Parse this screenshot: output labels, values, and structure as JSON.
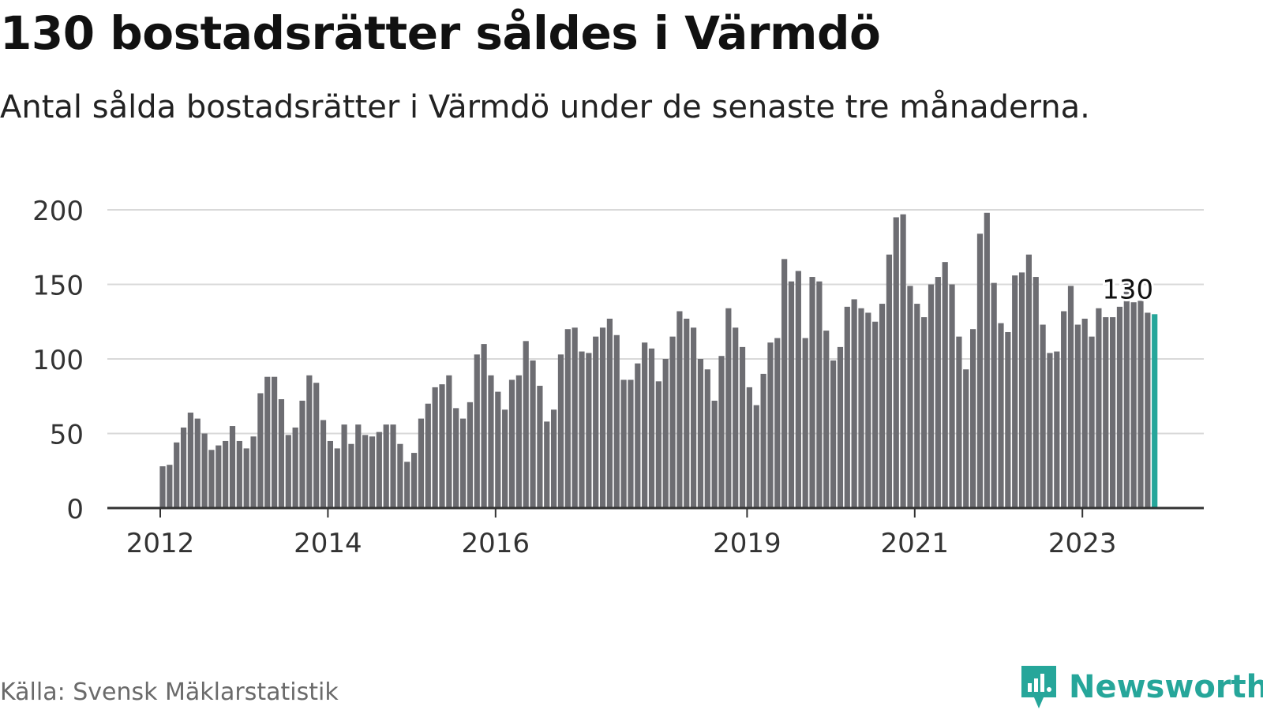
{
  "header": {
    "title": "130 bostadsrätter såldes i Värmdö",
    "subtitle": "Antal sålda bostadsrätter i Värmdö under de senaste tre månaderna."
  },
  "footer": {
    "source": "Källa: Svensk Mäklarstatistik",
    "brand": "Newsworthy"
  },
  "colors": {
    "bar": "#6d6d72",
    "highlight": "#26a69a",
    "grid": "#d9d9d9",
    "axis": "#333333",
    "text": "#333333"
  },
  "chart_data": {
    "type": "bar",
    "title": "130 bostadsrätter såldes i Värmdö",
    "subtitle": "Antal sålda bostadsrätter i Värmdö under de senaste tre månaderna.",
    "xlabel": "",
    "ylabel": "",
    "ylim": [
      0,
      200
    ],
    "yticks": [
      0,
      50,
      100,
      150,
      200
    ],
    "grid": true,
    "start": "2012-01",
    "year_ticks": [
      {
        "label": "2012",
        "index": 0
      },
      {
        "label": "2014",
        "index": 24
      },
      {
        "label": "2016",
        "index": 48
      },
      {
        "label": "2019",
        "index": 84
      },
      {
        "label": "2021",
        "index": 108
      },
      {
        "label": "2023",
        "index": 132
      }
    ],
    "highlight_label": "130",
    "highlight_index": 142,
    "values": [
      28,
      29,
      44,
      54,
      64,
      60,
      50,
      39,
      42,
      45,
      55,
      45,
      40,
      48,
      77,
      88,
      88,
      73,
      49,
      54,
      72,
      89,
      84,
      59,
      45,
      40,
      56,
      43,
      56,
      49,
      48,
      51,
      56,
      56,
      43,
      31,
      37,
      60,
      70,
      81,
      83,
      89,
      67,
      60,
      71,
      103,
      110,
      89,
      78,
      66,
      86,
      89,
      112,
      99,
      82,
      58,
      66,
      103,
      120,
      121,
      105,
      104,
      115,
      121,
      127,
      116,
      86,
      86,
      97,
      111,
      107,
      85,
      100,
      115,
      132,
      127,
      121,
      100,
      93,
      72,
      102,
      134,
      121,
      108,
      81,
      69,
      90,
      111,
      114,
      167,
      152,
      159,
      114,
      155,
      152,
      119,
      99,
      108,
      135,
      140,
      134,
      131,
      125,
      137,
      170,
      195,
      197,
      149,
      137,
      128,
      150,
      155,
      165,
      150,
      115,
      93,
      120,
      184,
      198,
      151,
      124,
      118,
      156,
      158,
      170,
      155,
      123,
      104,
      105,
      132,
      149,
      123,
      127,
      115,
      134,
      128,
      128,
      135,
      151,
      138,
      139,
      131,
      130
    ]
  }
}
